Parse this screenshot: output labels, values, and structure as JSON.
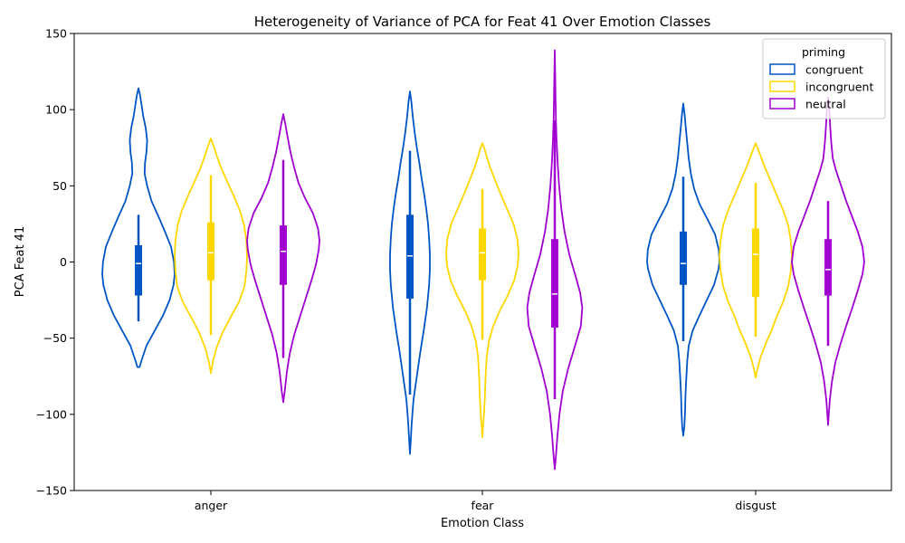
{
  "chart_data": {
    "type": "violin",
    "title": "Heterogeneity of Variance of PCA for Feat 41 Over Emotion Classes",
    "xlabel": "Emotion Class",
    "ylabel": "PCA Feat 41",
    "ylim": [
      -150,
      150
    ],
    "yticks": [
      -150,
      -100,
      -50,
      0,
      50,
      100,
      150
    ],
    "categories": [
      "anger",
      "fear",
      "disgust"
    ],
    "legend": {
      "title": "priming",
      "position": "top-right"
    },
    "series": [
      {
        "name": "congruent",
        "color": "#0055c4",
        "violins": [
          {
            "category": "anger",
            "min": -69,
            "max": 114,
            "q1": -22,
            "median": -1,
            "q3": 11,
            "whisker_low": -39,
            "whisker_high": 31,
            "profile": [
              [
                -69,
                0.03
              ],
              [
                -65,
                0.08
              ],
              [
                -55,
                0.22
              ],
              [
                -45,
                0.45
              ],
              [
                -35,
                0.68
              ],
              [
                -25,
                0.86
              ],
              [
                -15,
                0.97
              ],
              [
                -8,
                1.0
              ],
              [
                0,
                0.98
              ],
              [
                10,
                0.9
              ],
              [
                20,
                0.73
              ],
              [
                30,
                0.55
              ],
              [
                40,
                0.36
              ],
              [
                50,
                0.24
              ],
              [
                58,
                0.17
              ],
              [
                65,
                0.18
              ],
              [
                72,
                0.22
              ],
              [
                80,
                0.24
              ],
              [
                88,
                0.2
              ],
              [
                96,
                0.13
              ],
              [
                104,
                0.08
              ],
              [
                110,
                0.04
              ],
              [
                114,
                0.0
              ]
            ]
          },
          {
            "category": "fear",
            "min": -126,
            "max": 112,
            "q1": -24,
            "median": 4,
            "q3": 31,
            "whisker_low": -87,
            "whisker_high": 73,
            "profile": [
              [
                -126,
                0.0
              ],
              [
                -118,
                0.02
              ],
              [
                -105,
                0.05
              ],
              [
                -90,
                0.1
              ],
              [
                -75,
                0.19
              ],
              [
                -60,
                0.28
              ],
              [
                -45,
                0.38
              ],
              [
                -30,
                0.47
              ],
              [
                -15,
                0.53
              ],
              [
                -5,
                0.55
              ],
              [
                5,
                0.55
              ],
              [
                15,
                0.53
              ],
              [
                25,
                0.5
              ],
              [
                35,
                0.45
              ],
              [
                45,
                0.39
              ],
              [
                55,
                0.32
              ],
              [
                65,
                0.26
              ],
              [
                75,
                0.19
              ],
              [
                85,
                0.13
              ],
              [
                95,
                0.08
              ],
              [
                105,
                0.04
              ],
              [
                112,
                0.0
              ]
            ]
          },
          {
            "category": "disgust",
            "min": -114,
            "max": 104,
            "q1": -15,
            "median": -1,
            "q3": 20,
            "whisker_low": -52,
            "whisker_high": 56,
            "profile": [
              [
                -114,
                0.0
              ],
              [
                -108,
                0.03
              ],
              [
                -98,
                0.05
              ],
              [
                -88,
                0.06
              ],
              [
                -78,
                0.08
              ],
              [
                -65,
                0.11
              ],
              [
                -55,
                0.15
              ],
              [
                -45,
                0.26
              ],
              [
                -35,
                0.45
              ],
              [
                -25,
                0.65
              ],
              [
                -15,
                0.85
              ],
              [
                -5,
                0.97
              ],
              [
                0,
                1.0
              ],
              [
                8,
                0.98
              ],
              [
                18,
                0.88
              ],
              [
                28,
                0.67
              ],
              [
                38,
                0.45
              ],
              [
                48,
                0.3
              ],
              [
                58,
                0.21
              ],
              [
                68,
                0.15
              ],
              [
                78,
                0.11
              ],
              [
                88,
                0.07
              ],
              [
                96,
                0.04
              ],
              [
                104,
                0.0
              ]
            ]
          }
        ]
      },
      {
        "name": "incongruent",
        "color": "#ffd700",
        "violins": [
          {
            "category": "anger",
            "min": -73,
            "max": 81,
            "q1": -12,
            "median": 6,
            "q3": 26,
            "whisker_low": -48,
            "whisker_high": 57,
            "profile": [
              [
                -73,
                0.0
              ],
              [
                -66,
                0.05
              ],
              [
                -56,
                0.16
              ],
              [
                -46,
                0.33
              ],
              [
                -36,
                0.55
              ],
              [
                -26,
                0.78
              ],
              [
                -16,
                0.93
              ],
              [
                -6,
                0.98
              ],
              [
                4,
                1.0
              ],
              [
                14,
                0.98
              ],
              [
                24,
                0.92
              ],
              [
                34,
                0.8
              ],
              [
                44,
                0.62
              ],
              [
                54,
                0.43
              ],
              [
                62,
                0.28
              ],
              [
                70,
                0.16
              ],
              [
                76,
                0.08
              ],
              [
                81,
                0.0
              ]
            ]
          },
          {
            "category": "fear",
            "min": -115,
            "max": 78,
            "q1": -12,
            "median": 6,
            "q3": 22,
            "whisker_low": -51,
            "whisker_high": 48,
            "profile": [
              [
                -115,
                0.0
              ],
              [
                -108,
                0.02
              ],
              [
                -98,
                0.05
              ],
              [
                -88,
                0.07
              ],
              [
                -75,
                0.09
              ],
              [
                -62,
                0.12
              ],
              [
                -52,
                0.18
              ],
              [
                -42,
                0.3
              ],
              [
                -32,
                0.48
              ],
              [
                -22,
                0.7
              ],
              [
                -12,
                0.88
              ],
              [
                -2,
                0.98
              ],
              [
                6,
                1.0
              ],
              [
                15,
                0.97
              ],
              [
                25,
                0.86
              ],
              [
                35,
                0.68
              ],
              [
                45,
                0.5
              ],
              [
                55,
                0.33
              ],
              [
                63,
                0.2
              ],
              [
                70,
                0.11
              ],
              [
                75,
                0.05
              ],
              [
                78,
                0.0
              ]
            ]
          },
          {
            "category": "disgust",
            "min": -76,
            "max": 78,
            "q1": -23,
            "median": 5,
            "q3": 22,
            "whisker_low": -49,
            "whisker_high": 52,
            "profile": [
              [
                -76,
                0.0
              ],
              [
                -70,
                0.05
              ],
              [
                -62,
                0.14
              ],
              [
                -54,
                0.27
              ],
              [
                -46,
                0.42
              ],
              [
                -36,
                0.58
              ],
              [
                -26,
                0.76
              ],
              [
                -16,
                0.9
              ],
              [
                -6,
                0.97
              ],
              [
                4,
                1.0
              ],
              [
                14,
                0.97
              ],
              [
                24,
                0.9
              ],
              [
                34,
                0.76
              ],
              [
                44,
                0.58
              ],
              [
                54,
                0.4
              ],
              [
                63,
                0.24
              ],
              [
                70,
                0.13
              ],
              [
                75,
                0.05
              ],
              [
                78,
                0.0
              ]
            ]
          }
        ]
      },
      {
        "name": "neutral",
        "color": "#a000d0",
        "violins": [
          {
            "category": "anger",
            "min": -92,
            "max": 97,
            "q1": -15,
            "median": 7,
            "q3": 24,
            "whisker_low": -63,
            "whisker_high": 67,
            "profile": [
              [
                -92,
                0.0
              ],
              [
                -85,
                0.04
              ],
              [
                -72,
                0.1
              ],
              [
                -60,
                0.18
              ],
              [
                -48,
                0.3
              ],
              [
                -36,
                0.46
              ],
              [
                -24,
                0.62
              ],
              [
                -12,
                0.78
              ],
              [
                -2,
                0.9
              ],
              [
                8,
                0.98
              ],
              [
                14,
                1.0
              ],
              [
                22,
                0.96
              ],
              [
                32,
                0.82
              ],
              [
                42,
                0.6
              ],
              [
                52,
                0.42
              ],
              [
                62,
                0.3
              ],
              [
                72,
                0.2
              ],
              [
                82,
                0.12
              ],
              [
                90,
                0.06
              ],
              [
                97,
                0.0
              ]
            ]
          },
          {
            "category": "fear",
            "min": -136,
            "max": 139,
            "q1": -43,
            "median": -21,
            "q3": 15,
            "whisker_low": -90,
            "whisker_high": 93,
            "profile": [
              [
                -136,
                0.0
              ],
              [
                -128,
                0.03
              ],
              [
                -115,
                0.07
              ],
              [
                -100,
                0.13
              ],
              [
                -85,
                0.22
              ],
              [
                -70,
                0.37
              ],
              [
                -55,
                0.56
              ],
              [
                -42,
                0.72
              ],
              [
                -30,
                0.76
              ],
              [
                -20,
                0.7
              ],
              [
                -8,
                0.56
              ],
              [
                5,
                0.4
              ],
              [
                20,
                0.27
              ],
              [
                35,
                0.18
              ],
              [
                50,
                0.12
              ],
              [
                65,
                0.08
              ],
              [
                80,
                0.05
              ],
              [
                95,
                0.03
              ],
              [
                110,
                0.02
              ],
              [
                125,
                0.01
              ],
              [
                139,
                0.0
              ]
            ]
          },
          {
            "category": "disgust",
            "min": -107,
            "max": 108,
            "q1": -22,
            "median": -5,
            "q3": 15,
            "whisker_low": -55,
            "whisker_high": 40,
            "profile": [
              [
                -107,
                0.0
              ],
              [
                -100,
                0.02
              ],
              [
                -90,
                0.05
              ],
              [
                -78,
                0.11
              ],
              [
                -66,
                0.2
              ],
              [
                -54,
                0.34
              ],
              [
                -42,
                0.5
              ],
              [
                -30,
                0.67
              ],
              [
                -18,
                0.83
              ],
              [
                -8,
                0.95
              ],
              [
                0,
                1.0
              ],
              [
                10,
                0.95
              ],
              [
                20,
                0.82
              ],
              [
                30,
                0.66
              ],
              [
                40,
                0.5
              ],
              [
                50,
                0.36
              ],
              [
                60,
                0.22
              ],
              [
                68,
                0.13
              ],
              [
                78,
                0.09
              ],
              [
                88,
                0.06
              ],
              [
                98,
                0.04
              ],
              [
                104,
                0.02
              ],
              [
                108,
                0.0
              ]
            ]
          }
        ]
      }
    ]
  }
}
